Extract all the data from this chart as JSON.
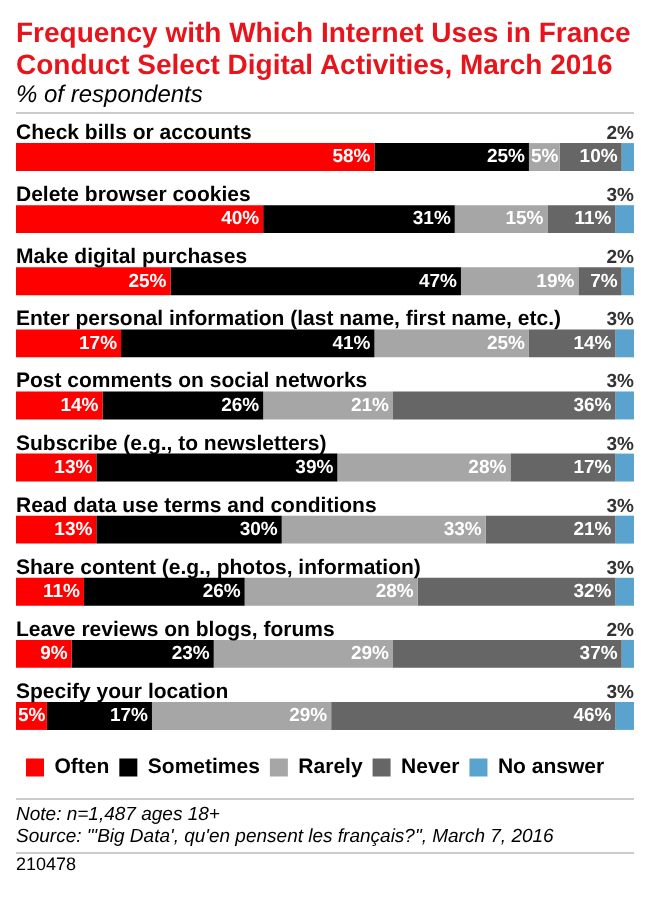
{
  "chart_data": {
    "type": "bar",
    "orientation": "horizontal",
    "stacked": true,
    "title": "Frequency with Which Internet Uses in France Conduct Select Digital Activities, March 2016",
    "subtitle": "% of respondents",
    "categories": [
      "Check bills or accounts",
      "Delete browser cookies",
      "Make digital purchases",
      "Enter personal information (last name, first name, etc.)",
      "Post comments on social networks",
      "Subscribe (e.g., to newsletters)",
      "Read data use terms and conditions",
      "Share content (e.g., photos, information)",
      "Leave reviews on blogs, forums",
      "Specify your location"
    ],
    "series": [
      {
        "name": "Often",
        "color": "#ff0000",
        "values": [
          58,
          40,
          25,
          17,
          14,
          13,
          13,
          11,
          9,
          5
        ],
        "value_labels": [
          "58%",
          "40%",
          "25%",
          "17%",
          "14%",
          "13%",
          "13%",
          "11%",
          "9%",
          "5%"
        ]
      },
      {
        "name": "Sometimes",
        "color": "#000000",
        "values": [
          25,
          31,
          47,
          41,
          26,
          39,
          30,
          26,
          23,
          17
        ],
        "value_labels": [
          "25%",
          "31%",
          "47%",
          "41%",
          "26%",
          "39%",
          "30%",
          "26%",
          "23%",
          "17%"
        ]
      },
      {
        "name": "Rarely",
        "color": "#a6a6a6",
        "values": [
          5,
          15,
          19,
          25,
          21,
          28,
          33,
          28,
          29,
          29
        ],
        "value_labels": [
          "5%",
          "15%",
          "19%",
          "25%",
          "21%",
          "28%",
          "33%",
          "28%",
          "29%",
          "29%"
        ]
      },
      {
        "name": "Never",
        "color": "#666666",
        "values": [
          10,
          11,
          7,
          14,
          36,
          17,
          21,
          32,
          37,
          46
        ],
        "value_labels": [
          "10%",
          "11%",
          "7%",
          "14%",
          "36%",
          "17%",
          "21%",
          "32%",
          "37%",
          "46%"
        ]
      },
      {
        "name": "No answer",
        "color": "#5ba3cf",
        "values": [
          2,
          3,
          2,
          3,
          3,
          3,
          3,
          3,
          2,
          3
        ],
        "value_labels": [
          "2%",
          "3%",
          "2%",
          "3%",
          "3%",
          "3%",
          "3%",
          "3%",
          "2%",
          "3%"
        ]
      }
    ],
    "xlim": [
      0,
      100
    ],
    "tick_labels": false,
    "legend": "bottom",
    "annotations": [
      "Note: n=1,487 ages 18+",
      "Source: \"'Big Data', qu'en pensent les français?\", March 7, 2016",
      "210478"
    ]
  }
}
